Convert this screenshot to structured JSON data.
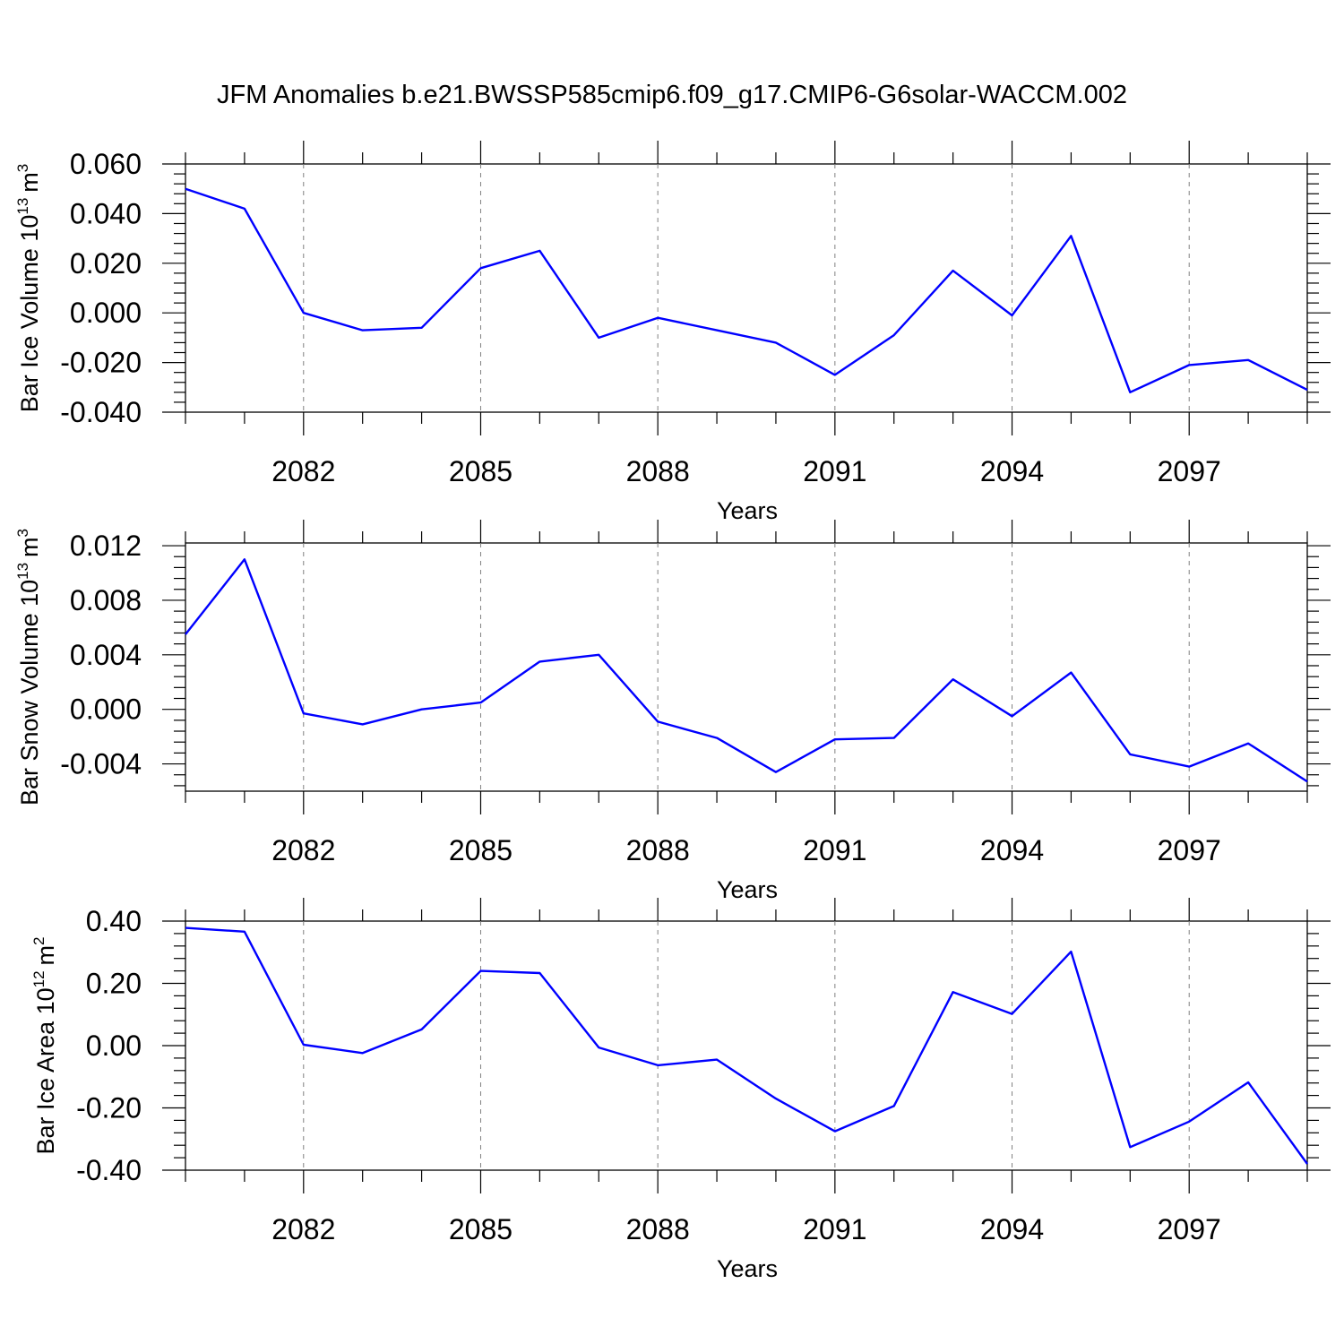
{
  "title": "JFM Anomalies b.e21.BWSSP585cmip6.f09_g17.CMIP6-G6solar-WACCM.002",
  "colors": {
    "series": "#0000ff",
    "axes": "#000000",
    "grid": "#808080"
  },
  "chart_data": [
    {
      "type": "line",
      "ylabel": "Bar Ice Volume",
      "yunit": {
        "base": "10",
        "exp": "13",
        "unit": "m",
        "unit_exp": "3"
      },
      "xlabel": "Years",
      "xlim": [
        2080,
        2099
      ],
      "ylim": [
        -0.04,
        0.06
      ],
      "y_major_ticks": [
        0.06,
        0.04,
        0.02,
        0.0,
        -0.02,
        -0.04
      ],
      "y_tick_labels": [
        "0.060",
        "0.040",
        "0.020",
        "0.000",
        "-0.020",
        "-0.040"
      ],
      "x_tick_labels": [
        "2082",
        "2085",
        "2088",
        "2091",
        "2094",
        "2097"
      ],
      "x_ticks": [
        2082,
        2085,
        2088,
        2091,
        2094,
        2097
      ],
      "grid": "vertical dashed at labeled years",
      "x": [
        2080,
        2081,
        2082,
        2083,
        2084,
        2085,
        2086,
        2087,
        2088,
        2089,
        2090,
        2091,
        2092,
        2093,
        2094,
        2095,
        2096,
        2097,
        2098,
        2099
      ],
      "values": [
        0.05,
        0.042,
        0.0,
        -0.007,
        -0.006,
        0.018,
        0.025,
        -0.01,
        -0.002,
        -0.007,
        -0.012,
        -0.025,
        -0.009,
        0.017,
        -0.001,
        0.031,
        -0.032,
        -0.021,
        -0.019,
        -0.031
      ]
    },
    {
      "type": "line",
      "ylabel": "Bar Snow Volume",
      "yunit": {
        "base": "10",
        "exp": "13",
        "unit": "m",
        "unit_exp": "3"
      },
      "xlabel": "Years",
      "xlim": [
        2080,
        2099
      ],
      "ylim": [
        -0.006,
        0.0122
      ],
      "y_major_ticks": [
        0.012,
        0.008,
        0.004,
        0.0,
        -0.004
      ],
      "y_tick_labels": [
        "0.012",
        "0.008",
        "0.004",
        "0.000",
        "-0.004"
      ],
      "x_tick_labels": [
        "2082",
        "2085",
        "2088",
        "2091",
        "2094",
        "2097"
      ],
      "x_ticks": [
        2082,
        2085,
        2088,
        2091,
        2094,
        2097
      ],
      "grid": "vertical dashed at labeled years",
      "x": [
        2080,
        2081,
        2082,
        2083,
        2084,
        2085,
        2086,
        2087,
        2088,
        2089,
        2090,
        2091,
        2092,
        2093,
        2094,
        2095,
        2096,
        2097,
        2098,
        2099
      ],
      "values": [
        0.0055,
        0.011,
        -0.0003,
        -0.0011,
        0.0,
        0.0005,
        0.0035,
        0.004,
        -0.0009,
        -0.0021,
        -0.0046,
        -0.0022,
        -0.0021,
        0.0022,
        -0.0005,
        0.0027,
        -0.0033,
        -0.0042,
        -0.0025,
        -0.0053
      ]
    },
    {
      "type": "line",
      "ylabel": "Bar Ice Area",
      "yunit": {
        "base": "10",
        "exp": "12",
        "unit": "m",
        "unit_exp": "2"
      },
      "xlabel": "Years",
      "xlim": [
        2080,
        2099
      ],
      "ylim": [
        -0.4,
        0.4
      ],
      "y_major_ticks": [
        0.4,
        0.2,
        0.0,
        -0.2,
        -0.4
      ],
      "y_tick_labels": [
        "0.40",
        "0.20",
        "0.00",
        "-0.20",
        "-0.40"
      ],
      "x_tick_labels": [
        "2082",
        "2085",
        "2088",
        "2091",
        "2094",
        "2097"
      ],
      "x_ticks": [
        2082,
        2085,
        2088,
        2091,
        2094,
        2097
      ],
      "grid": "vertical dashed at labeled years",
      "x": [
        2080,
        2081,
        2082,
        2083,
        2084,
        2085,
        2086,
        2087,
        2088,
        2089,
        2090,
        2091,
        2092,
        2093,
        2094,
        2095,
        2096,
        2097,
        2098,
        2099
      ],
      "values": [
        0.378,
        0.366,
        0.003,
        -0.024,
        0.052,
        0.24,
        0.233,
        -0.006,
        -0.063,
        -0.045,
        -0.17,
        -0.275,
        -0.194,
        0.172,
        0.102,
        0.302,
        -0.326,
        -0.244,
        -0.118,
        -0.38
      ]
    }
  ]
}
